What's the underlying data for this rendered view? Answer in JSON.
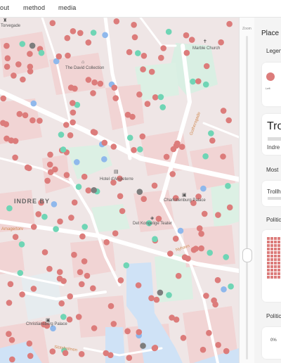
{
  "nav": {
    "items": [
      "out",
      "method",
      "media"
    ]
  },
  "colors": {
    "left": "#dc7c7b",
    "center": "#6fd5b5",
    "right": "#8fb8ec",
    "neutral": "#7d7d7d",
    "road_label": "#d08a52"
  },
  "map": {
    "zoom_label": "Zoom",
    "labels": {
      "top_left": "Torvegade",
      "marble_church": "Marble Church",
      "david_collection": "The David Collection",
      "hotel": "Hotel d'Angleterre",
      "indre_by": "INDRE BY",
      "charlottenburg": "Charlottenburg Palace",
      "kongelige_teater": "Det Kongelige Teater",
      "christiansborg": "Christiansborg Palace",
      "gothersgade": "Gothersgade",
      "nyhavn": "Nyhavn",
      "amagertorv": "Amagertorv",
      "slotsholmen": "Slotsholmen"
    },
    "icons": {
      "top_left": "castle-icon",
      "church": "church-icon",
      "museum": "museum-icon",
      "hotel": "hotel-icon",
      "palace": "palace-icon",
      "theater": "theater-icon",
      "christiansborg": "palace-icon"
    }
  },
  "panel": {
    "title": "Place",
    "legend_label": "Legend",
    "legend_item": "Left",
    "place_name": "Trollhatten",
    "district": "Indre By",
    "most_label": "Most",
    "most_item": "Trollhatten",
    "politics_label_1": "Politics",
    "politics_label_2": "Politics",
    "percent": "0%"
  }
}
